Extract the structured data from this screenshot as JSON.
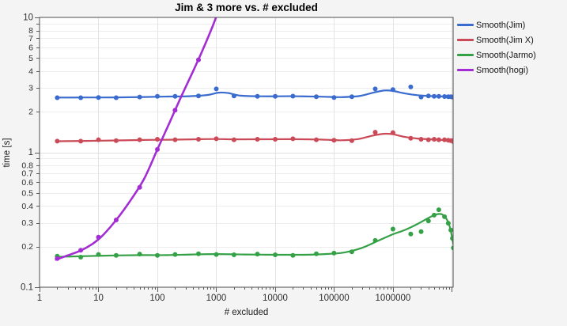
{
  "chart": {
    "title": "Jim & 3 more vs. # excluded",
    "xlabel": "# excluded",
    "ylabel": "time [s]"
  },
  "chart_data": {
    "type": "line",
    "title": "Jim & 3 more vs. # excluded",
    "xlabel": "# excluded",
    "ylabel": "time [s]",
    "x_scale": "log",
    "y_scale": "log",
    "xlim": [
      1,
      10500000
    ],
    "ylim": [
      0.1,
      10
    ],
    "grid": true,
    "legend_position": "right-top",
    "style": {
      "background": "#f4f4f5",
      "plot_background": "#ffffff",
      "frame_color": "#4e4e4e",
      "major_grid_color": "#e0e0e0",
      "minor_grid_color": "#ededed",
      "tick_color": "#5a5a5a",
      "tick_label_color": "#2e2e2e"
    },
    "x_ticks": [
      {
        "value": 1,
        "label": "1"
      },
      {
        "value": 10,
        "label": "10"
      },
      {
        "value": 100,
        "label": "100"
      },
      {
        "value": 1000,
        "label": "1000"
      },
      {
        "value": 10000,
        "label": "10000"
      },
      {
        "value": 100000,
        "label": "100000"
      },
      {
        "value": 1000000,
        "label": "1000000"
      },
      {
        "value": 10000000,
        "label": ""
      }
    ],
    "y_ticks": [
      {
        "value": 10,
        "label": "10"
      },
      {
        "value": 9,
        "label": ""
      },
      {
        "value": 8,
        "label": "8"
      },
      {
        "value": 7,
        "label": "7"
      },
      {
        "value": 6,
        "label": "6"
      },
      {
        "value": 5,
        "label": "5"
      },
      {
        "value": 4,
        "label": "4"
      },
      {
        "value": 3,
        "label": "3"
      },
      {
        "value": 2,
        "label": "2"
      },
      {
        "value": 1,
        "label": "1"
      },
      {
        "value": 0.9,
        "label": ""
      },
      {
        "value": 0.8,
        "label": "0.8"
      },
      {
        "value": 0.7,
        "label": "0.7"
      },
      {
        "value": 0.6,
        "label": "0.6"
      },
      {
        "value": 0.5,
        "label": "0.5"
      },
      {
        "value": 0.4,
        "label": "0.4"
      },
      {
        "value": 0.3,
        "label": "0.3"
      },
      {
        "value": 0.2,
        "label": "0.2"
      },
      {
        "value": 0.1,
        "label": "0.1"
      }
    ],
    "series": [
      {
        "name": "Smooth(Jim)",
        "color": "#3a6bcf",
        "line_width": 2.2,
        "points": [
          [
            2,
            2.54
          ],
          [
            5,
            2.54
          ],
          [
            10,
            2.55
          ],
          [
            20,
            2.54
          ],
          [
            50,
            2.57
          ],
          [
            100,
            2.6
          ],
          [
            200,
            2.6
          ],
          [
            500,
            2.62
          ],
          [
            1000,
            2.95
          ],
          [
            2000,
            2.62
          ],
          [
            5000,
            2.6
          ],
          [
            10000,
            2.6
          ],
          [
            20000,
            2.61
          ],
          [
            50000,
            2.58
          ],
          [
            100000,
            2.55
          ],
          [
            200000,
            2.58
          ],
          [
            500000,
            2.95
          ],
          [
            1000000,
            2.92
          ],
          [
            2000000,
            3.05
          ],
          [
            3000000,
            2.57
          ],
          [
            4000000,
            2.62
          ],
          [
            5000000,
            2.6
          ],
          [
            6000000,
            2.6
          ],
          [
            7500000,
            2.59
          ],
          [
            8700000,
            2.58
          ],
          [
            9600000,
            2.58
          ],
          [
            10200000,
            2.57
          ],
          [
            10600000,
            2.57
          ]
        ],
        "smooth_line": [
          [
            2,
            2.545
          ],
          [
            6,
            2.548
          ],
          [
            20,
            2.552
          ],
          [
            60,
            2.57
          ],
          [
            150,
            2.59
          ],
          [
            350,
            2.605
          ],
          [
            700,
            2.66
          ],
          [
            1100,
            2.77
          ],
          [
            1600,
            2.75
          ],
          [
            2600,
            2.63
          ],
          [
            6000,
            2.6
          ],
          [
            20000,
            2.605
          ],
          [
            60000,
            2.585
          ],
          [
            130000,
            2.565
          ],
          [
            260000,
            2.61
          ],
          [
            450000,
            2.76
          ],
          [
            700000,
            2.87
          ],
          [
            1000000,
            2.85
          ],
          [
            1600000,
            2.73
          ],
          [
            2600000,
            2.65
          ],
          [
            4200000,
            2.615
          ],
          [
            7000000,
            2.595
          ],
          [
            10600000,
            2.58
          ]
        ]
      },
      {
        "name": "Smooth(Jim X)",
        "color": "#cb4a57",
        "line_width": 2.2,
        "points": [
          [
            2,
            1.21
          ],
          [
            5,
            1.21
          ],
          [
            10,
            1.24
          ],
          [
            20,
            1.22
          ],
          [
            50,
            1.24
          ],
          [
            100,
            1.25
          ],
          [
            200,
            1.24
          ],
          [
            500,
            1.25
          ],
          [
            1000,
            1.26
          ],
          [
            2000,
            1.24
          ],
          [
            5000,
            1.25
          ],
          [
            10000,
            1.25
          ],
          [
            20000,
            1.26
          ],
          [
            50000,
            1.24
          ],
          [
            100000,
            1.23
          ],
          [
            200000,
            1.22
          ],
          [
            500000,
            1.41
          ],
          [
            1000000,
            1.4
          ],
          [
            2000000,
            1.27
          ],
          [
            3000000,
            1.25
          ],
          [
            4000000,
            1.24
          ],
          [
            5000000,
            1.25
          ],
          [
            6000000,
            1.24
          ],
          [
            7500000,
            1.24
          ],
          [
            8700000,
            1.23
          ],
          [
            9600000,
            1.22
          ],
          [
            10200000,
            1.22
          ],
          [
            10600000,
            1.2
          ]
        ],
        "smooth_line": [
          [
            2,
            1.208
          ],
          [
            6,
            1.215
          ],
          [
            20,
            1.225
          ],
          [
            60,
            1.235
          ],
          [
            150,
            1.24
          ],
          [
            400,
            1.248
          ],
          [
            900,
            1.255
          ],
          [
            2000,
            1.248
          ],
          [
            6000,
            1.25
          ],
          [
            20000,
            1.252
          ],
          [
            60000,
            1.243
          ],
          [
            130000,
            1.228
          ],
          [
            260000,
            1.255
          ],
          [
            450000,
            1.33
          ],
          [
            700000,
            1.372
          ],
          [
            1000000,
            1.36
          ],
          [
            1600000,
            1.3
          ],
          [
            2600000,
            1.265
          ],
          [
            4200000,
            1.25
          ],
          [
            7000000,
            1.235
          ],
          [
            10600000,
            1.21
          ]
        ]
      },
      {
        "name": "Smooth(Jarmo)",
        "color": "#34a146",
        "line_width": 2.2,
        "points": [
          [
            2,
            0.17
          ],
          [
            5,
            0.167
          ],
          [
            10,
            0.175
          ],
          [
            20,
            0.172
          ],
          [
            50,
            0.176
          ],
          [
            100,
            0.172
          ],
          [
            200,
            0.175
          ],
          [
            500,
            0.177
          ],
          [
            1000,
            0.175
          ],
          [
            2000,
            0.174
          ],
          [
            5000,
            0.176
          ],
          [
            10000,
            0.174
          ],
          [
            20000,
            0.172
          ],
          [
            50000,
            0.177
          ],
          [
            100000,
            0.179
          ],
          [
            200000,
            0.183
          ],
          [
            500000,
            0.222
          ],
          [
            1000000,
            0.27
          ],
          [
            2000000,
            0.248
          ],
          [
            3000000,
            0.258
          ],
          [
            4000000,
            0.31
          ],
          [
            5000000,
            0.342
          ],
          [
            6000000,
            0.375
          ],
          [
            7500000,
            0.333
          ],
          [
            8700000,
            0.298
          ],
          [
            9600000,
            0.265
          ],
          [
            10200000,
            0.23
          ],
          [
            10600000,
            0.196
          ]
        ],
        "smooth_line": [
          [
            2,
            0.168
          ],
          [
            6,
            0.17
          ],
          [
            20,
            0.172
          ],
          [
            60,
            0.173
          ],
          [
            150,
            0.173
          ],
          [
            400,
            0.175
          ],
          [
            1000,
            0.176
          ],
          [
            3000,
            0.175
          ],
          [
            10000,
            0.174
          ],
          [
            30000,
            0.174
          ],
          [
            70000,
            0.176
          ],
          [
            150000,
            0.181
          ],
          [
            300000,
            0.196
          ],
          [
            600000,
            0.224
          ],
          [
            1000000,
            0.247
          ],
          [
            1600000,
            0.266
          ],
          [
            2600000,
            0.294
          ],
          [
            4200000,
            0.33
          ],
          [
            5500000,
            0.347
          ],
          [
            6800000,
            0.347
          ],
          [
            8200000,
            0.318
          ],
          [
            9300000,
            0.276
          ],
          [
            10100000,
            0.234
          ],
          [
            10600000,
            0.208
          ]
        ]
      },
      {
        "name": "Smooth(hogi)",
        "color": "#a32dd3",
        "line_width": 2.6,
        "points": [
          [
            2,
            0.163
          ],
          [
            5,
            0.188
          ],
          [
            10,
            0.235
          ],
          [
            20,
            0.315
          ],
          [
            50,
            0.55
          ],
          [
            100,
            1.05
          ],
          [
            200,
            2.05
          ],
          [
            500,
            4.85
          ]
        ],
        "smooth_line": [
          [
            1.9,
            0.16
          ],
          [
            3,
            0.172
          ],
          [
            5,
            0.187
          ],
          [
            8,
            0.21
          ],
          [
            12,
            0.244
          ],
          [
            20,
            0.315
          ],
          [
            35,
            0.44
          ],
          [
            60,
            0.64
          ],
          [
            100,
            1.05
          ],
          [
            160,
            1.65
          ],
          [
            250,
            2.55
          ],
          [
            400,
            3.95
          ],
          [
            600,
            5.85
          ],
          [
            850,
            8.4
          ],
          [
            1100,
            11.3
          ],
          [
            1300,
            13.5
          ]
        ]
      }
    ]
  }
}
